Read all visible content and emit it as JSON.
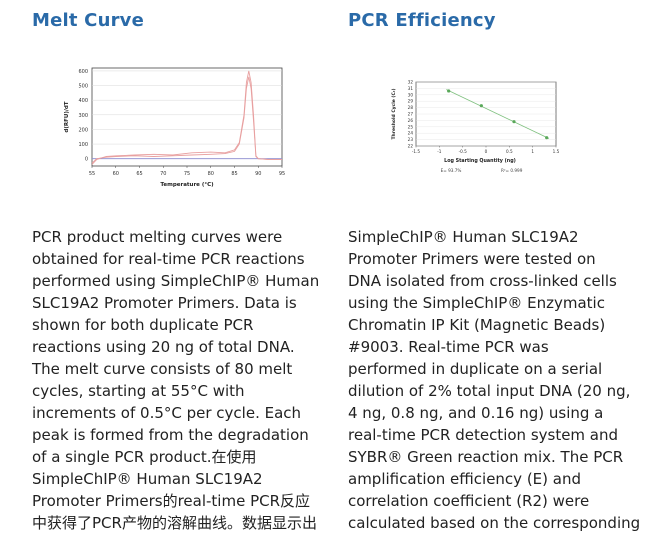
{
  "melt": {
    "heading": "Melt Curve",
    "paragraph": "PCR product melting curves were\nobtained for real-time PCR reactions\nperformed using SimpleChIP® Human\nSLC19A2 Promoter Primers. Data is\nshown for both duplicate PCR\nreactions using 20 ng of total DNA.\nThe melt curve consists of 80 melt\ncycles, starting at 55°C with\nincrements of 0.5°C per cycle. Each\npeak is formed from the degradation\nof a single PCR product.在使用\nSimpleChIP® Human SLC19A2\nPromoter Primers的real-time PCR反应\n中获得了PCR产物的溶解曲线。数据显示出",
    "chart": {
      "type": "line",
      "ylabel": "d(RFU)/dT",
      "xlabel": "Temperature (°C)",
      "x_ticks": [
        "55",
        "60",
        "65",
        "70",
        "75",
        "80",
        "85",
        "90",
        "95"
      ],
      "y_ticks": [
        "0",
        "100",
        "200",
        "300",
        "400",
        "500",
        "600"
      ],
      "xlim": [
        55,
        95
      ],
      "ylim": [
        -50,
        620
      ],
      "colors": {
        "series": "#e8a0a0",
        "baseline": "#c0c0c0",
        "threshold": "#8a8acf"
      }
    }
  },
  "pcr": {
    "heading": "PCR Efficiency",
    "paragraph": "SimpleChIP® Human SLC19A2\nPromoter Primers were tested on\nDNA isolated from cross-linked cells\nusing the SimpleChIP® Enzymatic\nChromatin IP Kit (Magnetic Beads)\n#9003. Real-time PCR was\nperformed in duplicate on a serial\ndilution of 2% total input DNA (20 ng,\n4 ng, 0.8 ng, and 0.16 ng) using a\nreal-time PCR detection system and\nSYBR® Green reaction mix. The PCR\namplification efficiency (E) and\ncorrelation coefficient (R2) were\ncalculated based on the corresponding",
    "chart": {
      "type": "scatter",
      "ylabel": "Threshold Cycle (Cₜ)",
      "xlabel": "Log Starting Quantity (ng)",
      "efficiency_label": "E= 93.7%",
      "r2_label": "R²= 0.999",
      "x_ticks": [
        "-1.5",
        "-1",
        "-0.5",
        "0",
        "0.5",
        "1",
        "1.5"
      ],
      "y_ticks": [
        "22",
        "23",
        "24",
        "25",
        "26",
        "27",
        "28",
        "29",
        "30",
        "31",
        "32"
      ],
      "xlim": [
        -1.5,
        1.5
      ],
      "ylim": [
        22,
        32
      ],
      "colors": {
        "point": "#5aa85a",
        "line": "#7ec07e"
      }
    }
  },
  "chart_data": [
    {
      "type": "line",
      "title": "",
      "xlabel": "Temperature (°C)",
      "ylabel": "d(RFU)/dT",
      "xlim": [
        55,
        95
      ],
      "ylim": [
        -50,
        620
      ],
      "series": [
        {
          "x": [
            55,
            56,
            58,
            60,
            64,
            68,
            72,
            76,
            80,
            83,
            85,
            86,
            87,
            87.5,
            88,
            88.5,
            89,
            89.5,
            90,
            92,
            95
          ],
          "y": [
            -40,
            -5,
            15,
            20,
            25,
            30,
            25,
            40,
            45,
            40,
            60,
            110,
            300,
            520,
            600,
            520,
            300,
            20,
            0,
            -5,
            -5
          ]
        },
        {
          "x": [
            55,
            56,
            58,
            60,
            64,
            68,
            72,
            76,
            80,
            83,
            85,
            86,
            87,
            87.5,
            88,
            88.5,
            89,
            89.5,
            90,
            92,
            95
          ],
          "y": [
            -30,
            0,
            10,
            15,
            20,
            15,
            20,
            25,
            30,
            35,
            50,
            100,
            280,
            480,
            560,
            480,
            260,
            15,
            0,
            -5,
            -5
          ]
        }
      ]
    },
    {
      "type": "scatter",
      "title": "",
      "xlabel": "Log Starting Quantity (ng)",
      "ylabel": "Threshold Cycle (Cₜ)",
      "xlim": [
        -1.5,
        1.5
      ],
      "ylim": [
        22,
        32
      ],
      "x": [
        -0.8,
        -0.1,
        0.6,
        1.3
      ],
      "y": [
        30.6,
        28.3,
        25.8,
        23.3
      ]
    }
  ]
}
